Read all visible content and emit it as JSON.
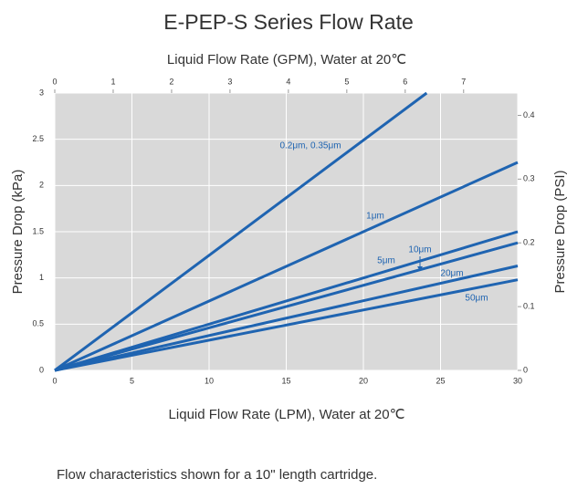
{
  "chart_data": {
    "type": "line",
    "title": "E-PEP-S Series Flow Rate",
    "x_label": "Liquid Flow Rate (LPM), Water at 20℃",
    "x2_label": "Liquid Flow Rate (GPM), Water at 20℃",
    "y_label": "Pressure Drop (kPa)",
    "y2_label": "Pressure Drop (PSI)",
    "caption": "Flow characteristics shown for a 10\" length cartridge.",
    "xlim": [
      0,
      30
    ],
    "xticks": [
      0,
      5,
      10,
      15,
      20,
      25,
      30
    ],
    "x2lim": [
      0,
      7.926
    ],
    "x2ticks": [
      0,
      1,
      2,
      3,
      4,
      5,
      6,
      7
    ],
    "ylim": [
      0,
      3
    ],
    "yticks": [
      0,
      0.5,
      1,
      1.5,
      2,
      2.5,
      3
    ],
    "y2lim": [
      0,
      0.435
    ],
    "y2ticks": [
      0,
      0.1,
      0.2,
      0.3,
      0.4
    ],
    "grid": true,
    "series": [
      {
        "name": "0.2μm, 0.35μm",
        "color": "#1f64b1",
        "x": [
          0,
          24.1
        ],
        "values": [
          0,
          3
        ]
      },
      {
        "name": "1μm",
        "color": "#1f64b1",
        "x": [
          0,
          30
        ],
        "values": [
          0,
          2.25
        ]
      },
      {
        "name": "5μm",
        "color": "#1f64b1",
        "x": [
          0,
          30
        ],
        "values": [
          0,
          1.5
        ]
      },
      {
        "name": "10μm",
        "color": "#1f64b1",
        "x": [
          0,
          30
        ],
        "values": [
          0,
          1.38
        ]
      },
      {
        "name": "20μm",
        "color": "#1f64b1",
        "x": [
          0,
          30
        ],
        "values": [
          0,
          1.13
        ]
      },
      {
        "name": "50μm",
        "color": "#1f64b1",
        "x": [
          0,
          30
        ],
        "values": [
          0,
          0.98
        ]
      }
    ]
  }
}
